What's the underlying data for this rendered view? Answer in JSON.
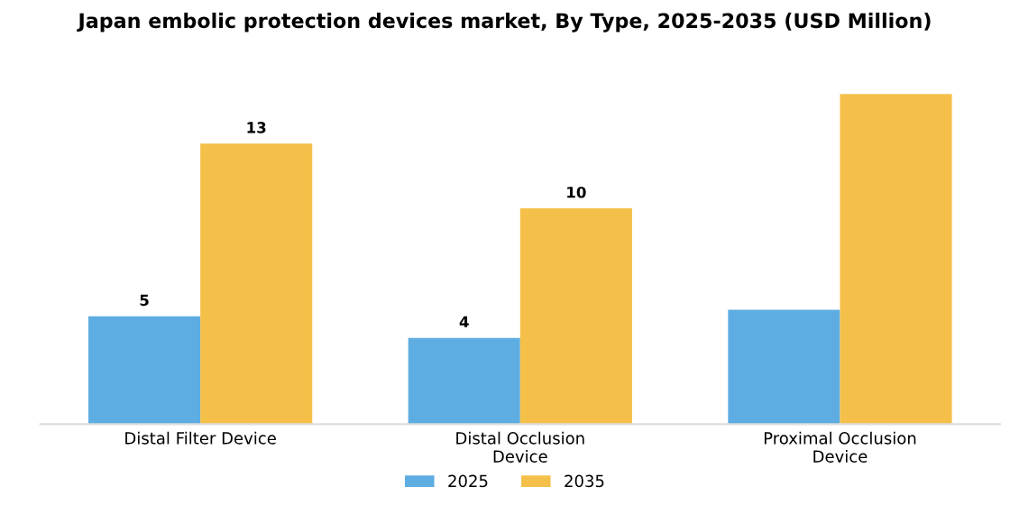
{
  "chart_data": {
    "type": "bar",
    "title": "Japan embolic protection devices market, By Type, 2025-2035 (USD Million)",
    "categories": [
      "Distal Filter Device",
      "Distal Occlusion\nDevice",
      "Proximal Occlusion\nDevice"
    ],
    "series": [
      {
        "name": "2025",
        "color": "#5dade2",
        "values": [
          5,
          4,
          5.3
        ],
        "value_labels": [
          "5",
          "4",
          null
        ]
      },
      {
        "name": "2035",
        "color": "#f5c04a",
        "values": [
          13,
          10,
          15.3
        ],
        "value_labels": [
          "13",
          "10",
          null
        ]
      }
    ],
    "legend": "bottom",
    "grid": false
  }
}
